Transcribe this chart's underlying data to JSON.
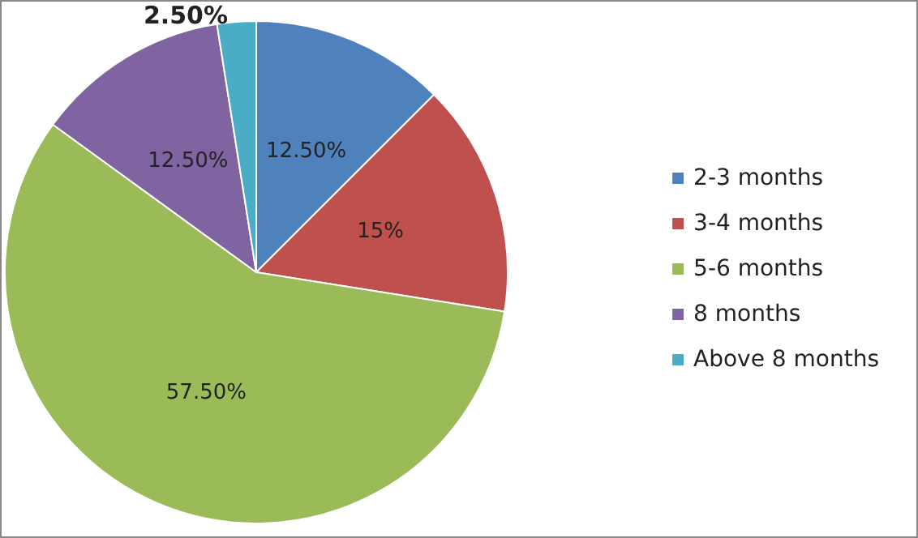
{
  "chart_data": {
    "type": "pie",
    "categories": [
      "2-3 months",
      "3-4 months",
      "5-6 months",
      "8 months",
      "Above 8 months"
    ],
    "values": [
      12.5,
      15,
      57.5,
      12.5,
      2.5
    ],
    "colors": [
      "#4f81bd",
      "#c0504d",
      "#9bbb59",
      "#8064a2",
      "#4bacc6"
    ],
    "value_labels": [
      "12.50%",
      "15%",
      "57.50%",
      "12.50%",
      "2.50%"
    ],
    "legend": "right"
  }
}
